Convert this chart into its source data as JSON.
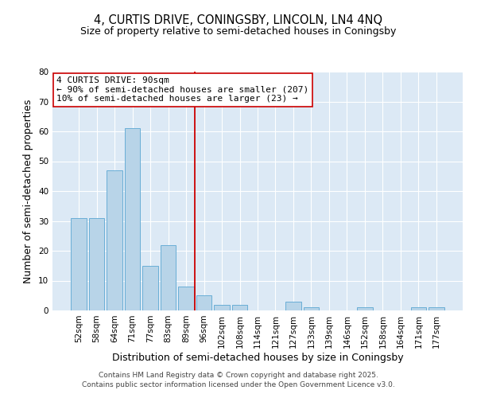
{
  "title": "4, CURTIS DRIVE, CONINGSBY, LINCOLN, LN4 4NQ",
  "subtitle": "Size of property relative to semi-detached houses in Coningsby",
  "xlabel": "Distribution of semi-detached houses by size in Coningsby",
  "ylabel": "Number of semi-detached properties",
  "bar_labels": [
    "52sqm",
    "58sqm",
    "64sqm",
    "71sqm",
    "77sqm",
    "83sqm",
    "89sqm",
    "96sqm",
    "102sqm",
    "108sqm",
    "114sqm",
    "121sqm",
    "127sqm",
    "133sqm",
    "139sqm",
    "146sqm",
    "152sqm",
    "158sqm",
    "164sqm",
    "171sqm",
    "177sqm"
  ],
  "bar_values": [
    31,
    31,
    47,
    61,
    15,
    22,
    8,
    5,
    2,
    2,
    0,
    0,
    3,
    1,
    0,
    0,
    1,
    0,
    0,
    1,
    1
  ],
  "bar_color": "#b8d4e8",
  "bar_edge_color": "#6aaed6",
  "vline_color": "#cc0000",
  "vline_index": 6,
  "annotation_text": "4 CURTIS DRIVE: 90sqm\n← 90% of semi-detached houses are smaller (207)\n10% of semi-detached houses are larger (23) →",
  "annotation_box_color": "#ffffff",
  "annotation_box_edge": "#cc0000",
  "ylim": [
    0,
    80
  ],
  "yticks": [
    0,
    10,
    20,
    30,
    40,
    50,
    60,
    70,
    80
  ],
  "bg_color": "#dce9f5",
  "fig_bg_color": "#ffffff",
  "footer_line1": "Contains HM Land Registry data © Crown copyright and database right 2025.",
  "footer_line2": "Contains public sector information licensed under the Open Government Licence v3.0.",
  "title_fontsize": 10.5,
  "subtitle_fontsize": 9,
  "axis_label_fontsize": 9,
  "tick_fontsize": 7.5,
  "annotation_fontsize": 8,
  "footer_fontsize": 6.5
}
